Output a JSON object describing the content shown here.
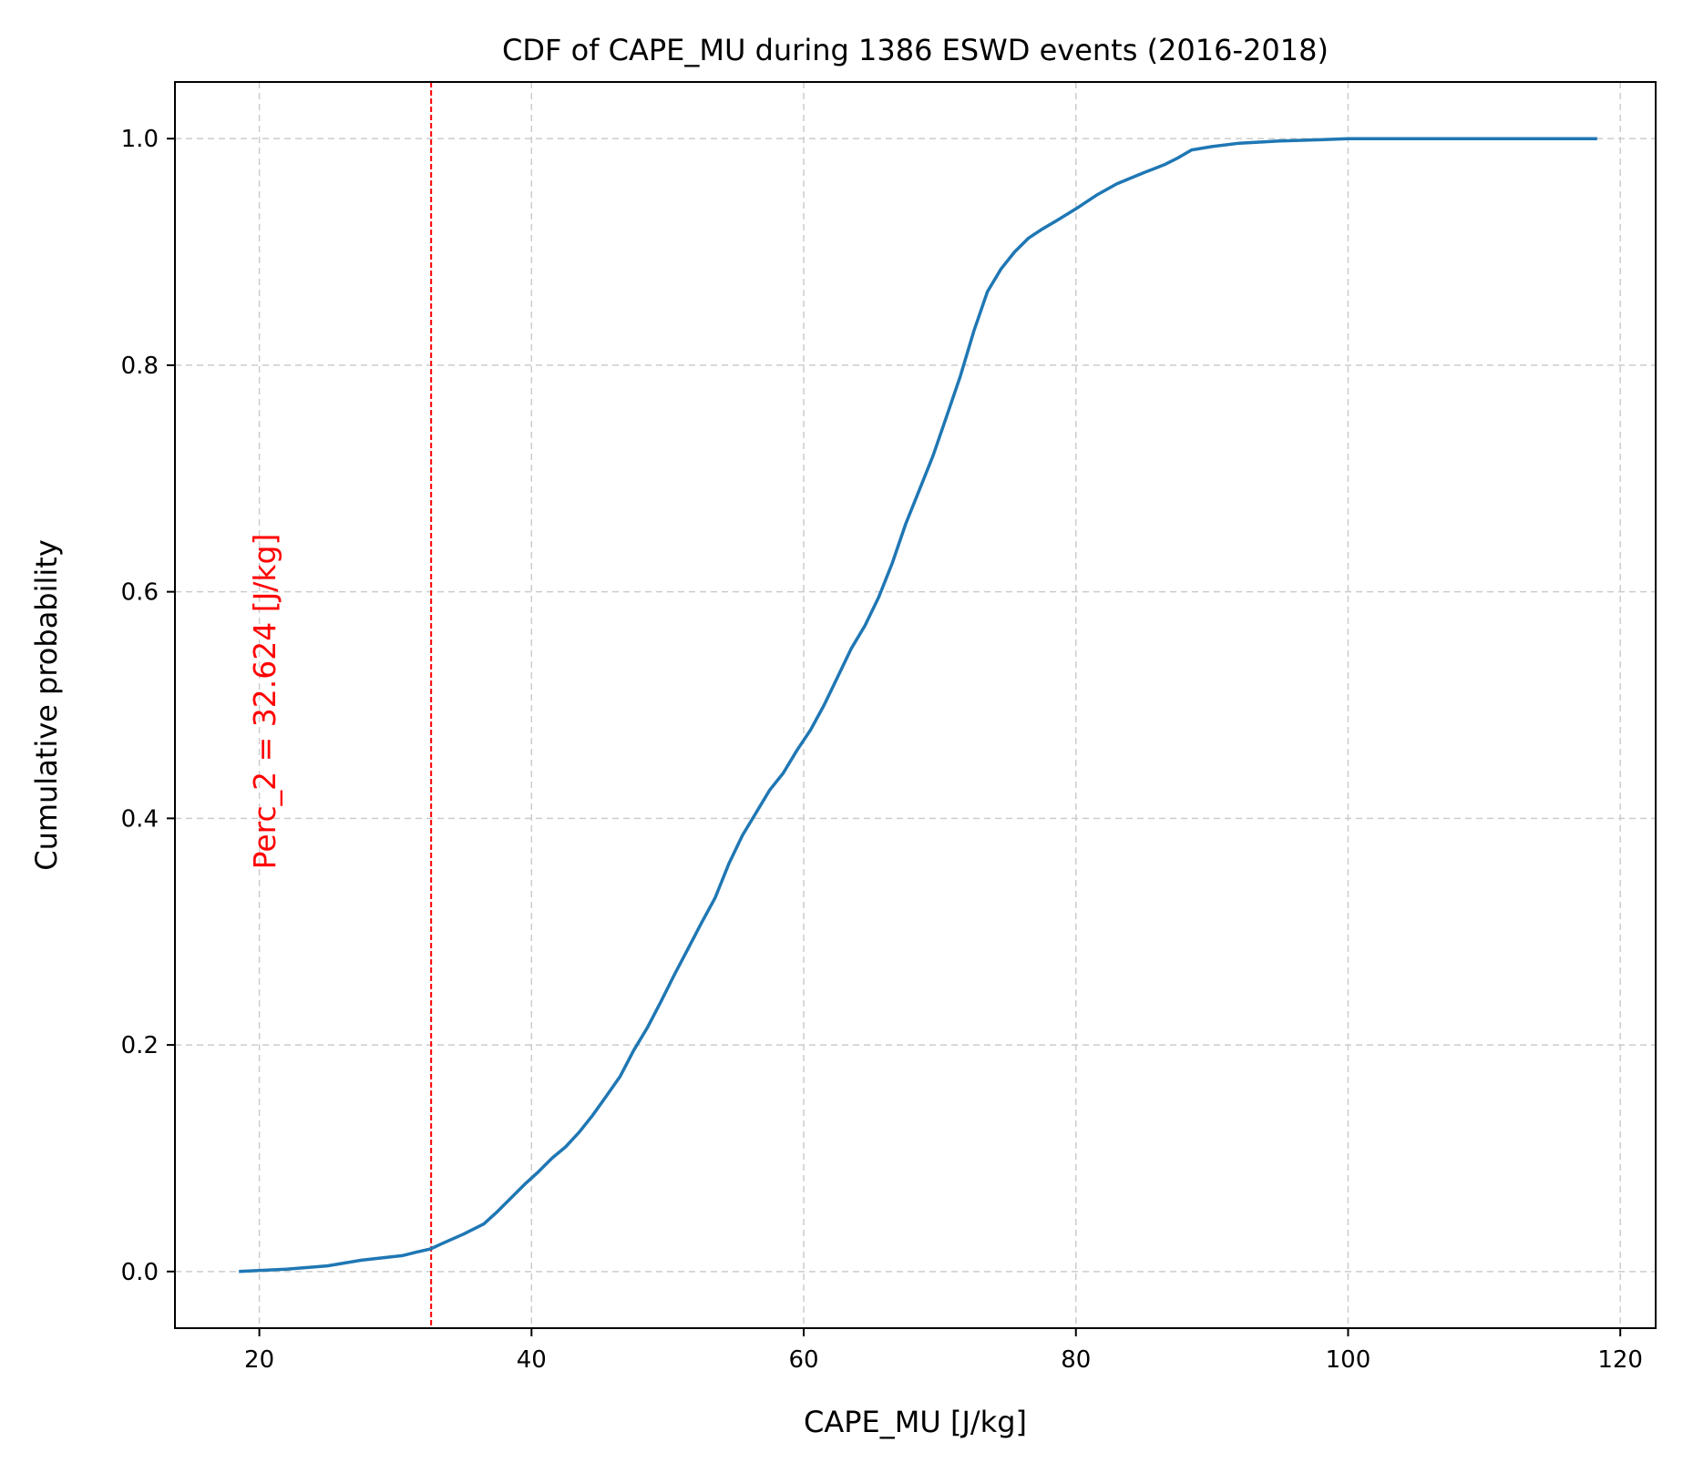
{
  "chart_data": {
    "type": "line",
    "title": "CDF of CAPE_MU during 1386 ESWD events (2016-2018)",
    "xlabel": "CAPE_MU [J/kg]",
    "ylabel": "Cumulative probability",
    "xlim": [
      13.8,
      122.6
    ],
    "ylim": [
      -0.05,
      1.05
    ],
    "xticks": [
      20,
      40,
      60,
      80,
      100,
      120
    ],
    "yticks": [
      0.0,
      0.2,
      0.4,
      0.6,
      0.8,
      1.0
    ],
    "xtick_labels": [
      "20",
      "40",
      "60",
      "80",
      "100",
      "120"
    ],
    "ytick_labels": [
      "0.0",
      "0.2",
      "0.4",
      "0.6",
      "0.8",
      "1.0"
    ],
    "grid": true,
    "line_color": "#1f77b4",
    "annotation_color": "#ff0000",
    "series": [
      {
        "x": [
          18.5,
          22,
          25,
          26,
          27.5,
          29,
          30.5,
          31.5,
          32.6,
          33.5,
          35,
          36.5,
          37.5,
          38.5,
          39.5,
          40.5,
          41.5,
          42.5,
          43.5,
          44.5,
          45.5,
          46.5,
          47.5,
          48.5,
          49.5,
          50.5,
          51.5,
          52.5,
          53.5,
          54.5,
          55.5,
          56.5,
          57.5,
          58.5,
          59.5,
          60.5,
          61.5,
          62.5,
          63.5,
          64.5,
          65.5,
          66.5,
          67.5,
          68.5,
          69.5,
          70.5,
          71.5,
          72.5,
          73.5,
          74.5,
          75.5,
          76.5,
          77.5,
          78.5,
          80,
          81.5,
          83,
          85,
          86.5,
          87.5,
          88.5,
          90,
          92,
          95,
          98,
          100,
          110,
          118.3
        ],
        "y": [
          0.0,
          0.002,
          0.005,
          0.007,
          0.01,
          0.012,
          0.014,
          0.017,
          0.02,
          0.025,
          0.033,
          0.042,
          0.053,
          0.065,
          0.077,
          0.088,
          0.1,
          0.11,
          0.123,
          0.138,
          0.155,
          0.172,
          0.195,
          0.215,
          0.238,
          0.262,
          0.285,
          0.308,
          0.33,
          0.36,
          0.385,
          0.405,
          0.425,
          0.44,
          0.46,
          0.478,
          0.5,
          0.525,
          0.55,
          0.57,
          0.595,
          0.625,
          0.66,
          0.69,
          0.72,
          0.755,
          0.79,
          0.83,
          0.865,
          0.885,
          0.9,
          0.912,
          0.92,
          0.927,
          0.938,
          0.95,
          0.96,
          0.97,
          0.977,
          0.983,
          0.99,
          0.993,
          0.996,
          0.998,
          0.999,
          1.0,
          1.0,
          1.0
        ]
      }
    ],
    "vline": {
      "x": 32.624,
      "label": "Perc_2 = 32.624 [J/kg]"
    }
  }
}
